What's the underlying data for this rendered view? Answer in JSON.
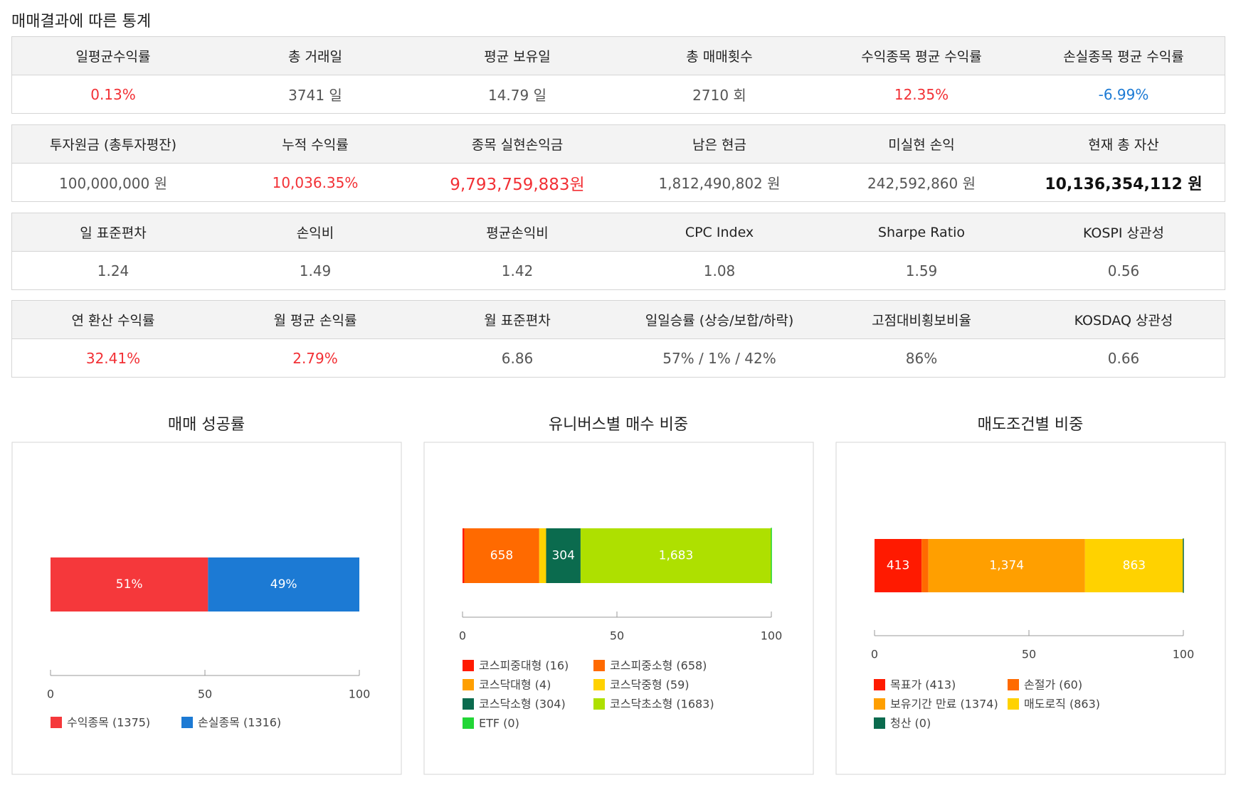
{
  "title": "매매결과에 따른 통계",
  "tables": [
    {
      "headers": [
        "일평균수익률",
        "총 거래일",
        "평균 보유일",
        "총 매매횟수",
        "수익종목 평균 수익률",
        "손실종목 평균 수익률"
      ],
      "values": [
        "0.13%",
        "3741 일",
        "14.79 일",
        "2710 회",
        "12.35%",
        "-6.99%"
      ]
    },
    {
      "headers": [
        "투자원금 (총투자평잔)",
        "누적 수익률",
        "종목 실현손익금",
        "남은 현금",
        "미실현 손익",
        "현재 총 자산"
      ],
      "values": [
        "100,000,000 원",
        "10,036.35%",
        "9,793,759,883원",
        "1,812,490,802 원",
        "242,592,860 원",
        "10,136,354,112 원"
      ]
    },
    {
      "headers": [
        "일 표준편차",
        "손익비",
        "평균손익비",
        "CPC Index",
        "Sharpe Ratio",
        "KOSPI 상관성"
      ],
      "values": [
        "1.24",
        "1.49",
        "1.42",
        "1.08",
        "1.59",
        "0.56"
      ]
    },
    {
      "headers": [
        "연 환산 수익률",
        "월 평균 손익률",
        "월 표준편차",
        "일일승률 (상승/보합/하락)",
        "고점대비횡보비율",
        "KOSDAQ 상관성"
      ],
      "values": [
        "32.41%",
        "2.79%",
        "6.86",
        "57% / 1% / 42%",
        "86%",
        "0.66"
      ]
    }
  ],
  "chart_data": [
    {
      "type": "bar",
      "title": "매매 성공률",
      "xlim": [
        0,
        100
      ],
      "xticks": [
        0,
        50,
        100
      ],
      "series": [
        {
          "name": "수익종목 (1375)",
          "color": "#f5383b",
          "values": [
            51
          ],
          "value_labels": [
            "51%"
          ]
        },
        {
          "name": "손실종목 (1316)",
          "color": "#1c7ad4",
          "values": [
            49
          ],
          "value_labels": [
            "49%"
          ]
        }
      ]
    },
    {
      "type": "bar",
      "title": "유니버스별 매수 비중",
      "xlim": [
        0,
        100
      ],
      "xticks": [
        0,
        50,
        100
      ],
      "series": [
        {
          "name": "코스피중대형 (16)",
          "color": "#ff1a00",
          "values": [
            0.59
          ]
        },
        {
          "name": "코스피중소형 (658)",
          "color": "#ff6a00",
          "values": [
            24.16
          ],
          "value_labels": [
            "658"
          ]
        },
        {
          "name": "코스닥대형 (4)",
          "color": "#ff9f00",
          "values": [
            0.15
          ]
        },
        {
          "name": "코스닥중형 (59)",
          "color": "#ffd200",
          "values": [
            2.17
          ]
        },
        {
          "name": "코스닥소형 (304)",
          "color": "#0b6b4e",
          "values": [
            11.16
          ],
          "value_labels": [
            "304"
          ]
        },
        {
          "name": "코스닥초소형 (1683)",
          "color": "#aee000",
          "values": [
            61.78
          ],
          "value_labels": [
            "1,683"
          ]
        },
        {
          "name": "ETF (0)",
          "color": "#22d636",
          "values": [
            0
          ]
        }
      ]
    },
    {
      "type": "bar",
      "title": "매도조건별 비중",
      "xlim": [
        0,
        100
      ],
      "xticks": [
        0,
        50,
        100
      ],
      "series": [
        {
          "name": "목표가 (413)",
          "color": "#ff1a00",
          "values": [
            15.24
          ],
          "value_labels": [
            "413"
          ]
        },
        {
          "name": "손절가 (60)",
          "color": "#ff6a00",
          "values": [
            2.21
          ]
        },
        {
          "name": "보유기간 만료 (1374)",
          "color": "#ff9f00",
          "values": [
            50.7
          ],
          "value_labels": [
            "1,374"
          ]
        },
        {
          "name": "매도로직 (863)",
          "color": "#ffd200",
          "values": [
            31.85
          ],
          "value_labels": [
            "863"
          ]
        },
        {
          "name": "청산 (0)",
          "color": "#0b6b4e",
          "values": [
            0
          ]
        }
      ]
    }
  ]
}
